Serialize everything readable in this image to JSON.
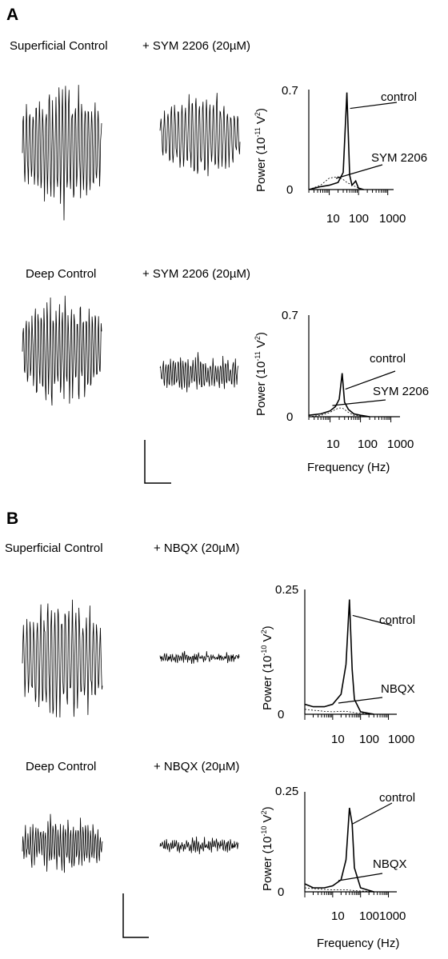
{
  "panelA": {
    "letter": "A",
    "row1": {
      "control_label": "Superficial Control",
      "drug_label": "+ SYM 2206 (20µM)"
    },
    "row2": {
      "control_label": "Deep Control",
      "drug_label": "+ SYM 2206 (20µM)"
    },
    "spectrum1": {
      "ymax_label": "0.7",
      "ymin_label": "0",
      "ylabel_main": "Power (10",
      "ylabel_exp": "-11",
      "ylabel_unit": " V",
      "ylabel_sq": "2",
      "ylabel_close": ")",
      "x_ticks": [
        "10",
        "100",
        "1000"
      ],
      "control_label": "control",
      "drug_label": "SYM 2206"
    },
    "spectrum2": {
      "ymax_label": "0.7",
      "ymin_label": "0",
      "ylabel_main": "Power (10",
      "ylabel_exp": "-11",
      "ylabel_unit": " V",
      "ylabel_sq": "2",
      "ylabel_close": ")",
      "x_ticks": [
        "10",
        "100",
        "1000"
      ],
      "control_label": "control",
      "drug_label": "SYM 2206",
      "xlabel": "Frequency (Hz)"
    }
  },
  "panelB": {
    "letter": "B",
    "row1": {
      "control_label": "Superficial Control",
      "drug_label": "+ NBQX (20µM)"
    },
    "row2": {
      "control_label": "Deep Control",
      "drug_label": "+ NBQX (20µM)"
    },
    "spectrum1": {
      "ymax_label": "0.25",
      "ymin_label": "0",
      "ylabel_main": "Power (10",
      "ylabel_exp": "-10",
      "ylabel_unit": " V",
      "ylabel_sq": "2",
      "ylabel_close": ")",
      "x_ticks": [
        "10",
        "100",
        "1000"
      ],
      "control_label": "control",
      "drug_label": "NBQX"
    },
    "spectrum2": {
      "ymax_label": "0.25",
      "ymin_label": "0",
      "ylabel_main": "Power (10",
      "ylabel_exp": "-10",
      "ylabel_unit": " V",
      "ylabel_sq": "2",
      "ylabel_close": ")",
      "x_ticks": [
        "10",
        "1001000"
      ],
      "control_label": "control",
      "drug_label": "NBQX",
      "xlabel": "Frequency (Hz)"
    }
  },
  "chart_data": [
    {
      "type": "line",
      "panel": "A-superficial",
      "ylim": [
        0,
        0.7
      ],
      "xscale": "log",
      "series": [
        {
          "name": "control",
          "x": [
            2,
            5,
            10,
            20,
            30,
            40,
            50,
            60,
            80,
            100,
            150
          ],
          "y": [
            0,
            0.02,
            0.03,
            0.05,
            0.12,
            0.68,
            0.1,
            0.03,
            0.06,
            0.01,
            0
          ]
        },
        {
          "name": "SYM 2206",
          "x": [
            2,
            5,
            10,
            20,
            30,
            40,
            50,
            60,
            80,
            100,
            150
          ],
          "y": [
            0,
            0.03,
            0.08,
            0.09,
            0.07,
            0.05,
            0.04,
            0.03,
            0.02,
            0.01,
            0
          ]
        }
      ]
    },
    {
      "type": "line",
      "panel": "A-deep",
      "ylim": [
        0,
        0.7
      ],
      "xscale": "log",
      "series": [
        {
          "name": "control",
          "x": [
            2,
            5,
            10,
            15,
            20,
            25,
            30,
            40,
            60,
            100,
            200
          ],
          "y": [
            0.01,
            0.02,
            0.04,
            0.07,
            0.12,
            0.3,
            0.1,
            0.05,
            0.02,
            0.01,
            0
          ]
        },
        {
          "name": "SYM 2206",
          "x": [
            2,
            5,
            10,
            15,
            20,
            25,
            30,
            40,
            60,
            100,
            200
          ],
          "y": [
            0,
            0.01,
            0.03,
            0.05,
            0.06,
            0.06,
            0.05,
            0.03,
            0.01,
            0.005,
            0
          ]
        }
      ]
    },
    {
      "type": "line",
      "panel": "B-superficial",
      "ylim": [
        0,
        0.25
      ],
      "xscale": "log",
      "series": [
        {
          "name": "control",
          "x": [
            1,
            2,
            5,
            10,
            20,
            30,
            40,
            50,
            60,
            100,
            300
          ],
          "y": [
            0.02,
            0.015,
            0.015,
            0.02,
            0.04,
            0.1,
            0.23,
            0.09,
            0.03,
            0.005,
            0
          ]
        },
        {
          "name": "NBQX",
          "x": [
            1,
            2,
            5,
            10,
            20,
            30,
            40,
            50,
            60,
            100,
            300
          ],
          "y": [
            0.01,
            0.008,
            0.006,
            0.005,
            0.006,
            0.006,
            0.005,
            0.004,
            0.003,
            0.002,
            0.001
          ]
        }
      ]
    },
    {
      "type": "line",
      "panel": "B-deep",
      "ylim": [
        0,
        0.25
      ],
      "xscale": "log",
      "series": [
        {
          "name": "control",
          "x": [
            1,
            2,
            5,
            10,
            20,
            30,
            40,
            50,
            60,
            100,
            300
          ],
          "y": [
            0.02,
            0.01,
            0.01,
            0.015,
            0.03,
            0.08,
            0.21,
            0.17,
            0.06,
            0.01,
            0
          ]
        },
        {
          "name": "NBQX",
          "x": [
            1,
            2,
            5,
            10,
            20,
            30,
            40,
            50,
            60,
            100,
            300
          ],
          "y": [
            0.01,
            0.008,
            0.006,
            0.005,
            0.005,
            0.005,
            0.004,
            0.004,
            0.003,
            0.002,
            0.001
          ]
        }
      ]
    }
  ]
}
